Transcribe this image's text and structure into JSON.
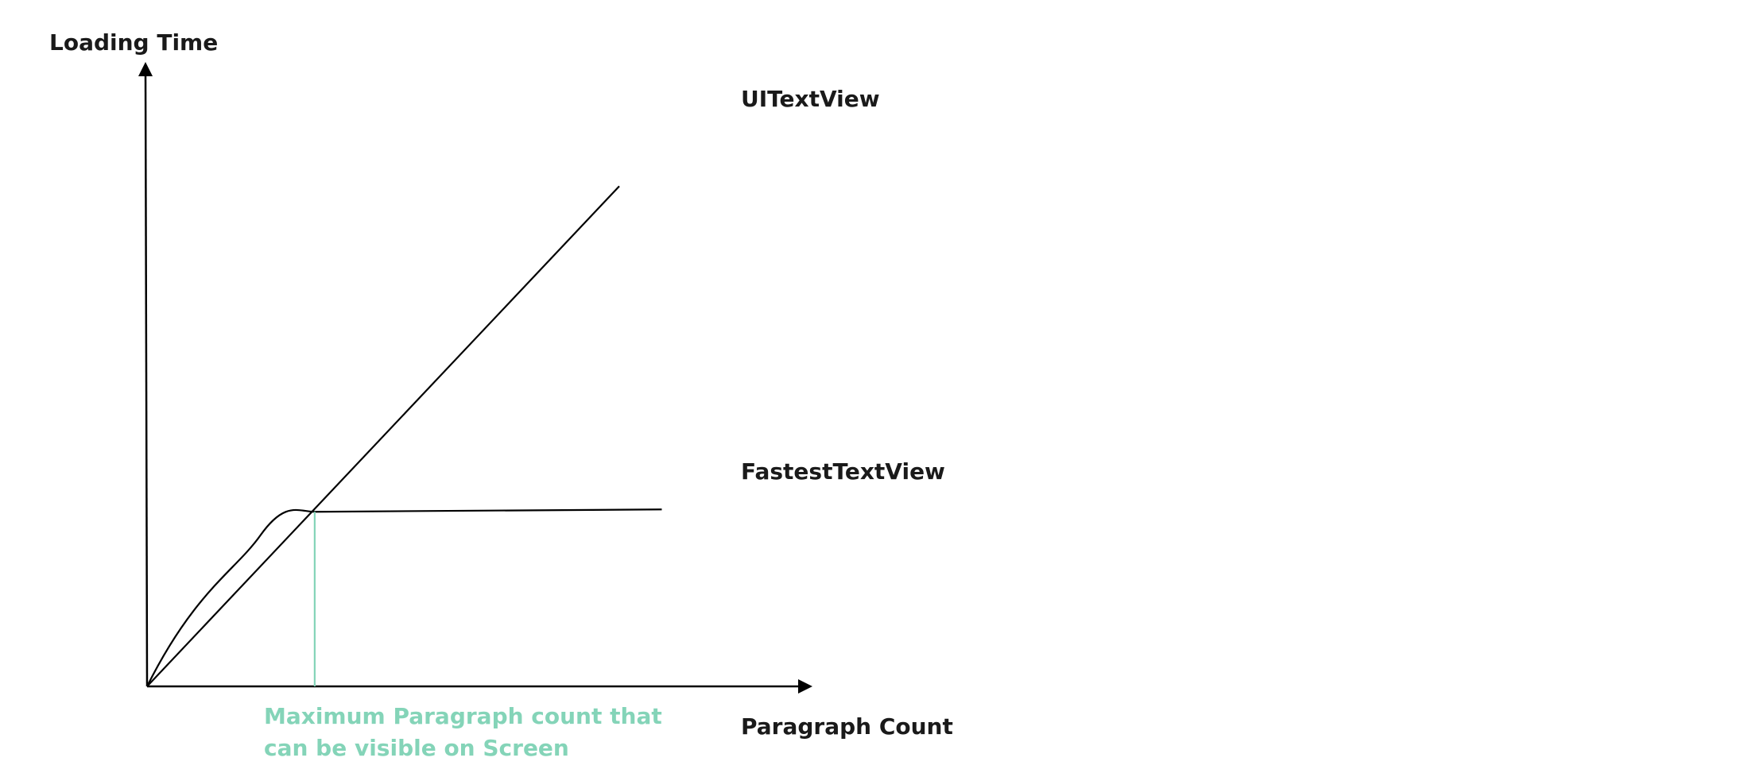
{
  "chart_data": {
    "type": "line",
    "xlabel": "Paragraph Count",
    "ylabel": "Loading Time",
    "series": [
      {
        "name": "UITextView",
        "x": [
          0,
          10
        ],
        "y": [
          0,
          10.6
        ],
        "shape": "linear"
      },
      {
        "name": "FastestTextView",
        "x": [
          0,
          1.2,
          2.4,
          3.55,
          10.9
        ],
        "y": [
          0,
          1.95,
          3.2,
          3.7,
          3.75
        ],
        "shape": "curve then plateau"
      }
    ],
    "annotations": [
      {
        "text_lines": [
          "Maximum Paragraph count that",
          "can be visible on Screen"
        ],
        "kind": "vertical marker",
        "x": 3.55,
        "color": "#84d4b8"
      }
    ],
    "ticks": "none",
    "grid": false
  },
  "colors": {
    "axis": "#000000",
    "line": "#000000",
    "marker": "#84d4b8",
    "text": "#1a1a1a"
  }
}
